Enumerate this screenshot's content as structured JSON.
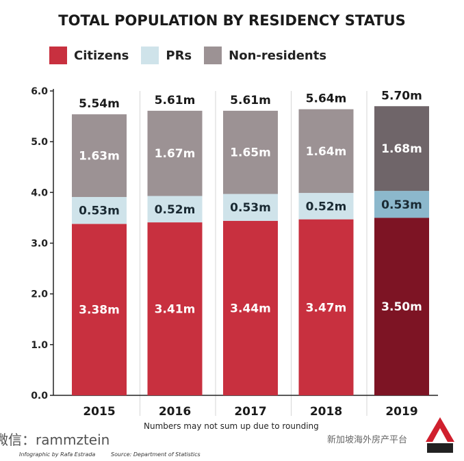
{
  "chart_data": {
    "type": "bar",
    "stacked": true,
    "title": "TOTAL POPULATION BY RESIDENCY STATUS",
    "categories": [
      "2015",
      "2016",
      "2017",
      "2018",
      "2019"
    ],
    "series": [
      {
        "name": "Citizens",
        "values": [
          3.38,
          3.41,
          3.44,
          3.47,
          3.5
        ],
        "labels": [
          "3.38m",
          "3.41m",
          "3.44m",
          "3.47m",
          "3.50m"
        ],
        "color": "#c8303f",
        "highlight": "#7d1424"
      },
      {
        "name": "PRs",
        "values": [
          0.53,
          0.52,
          0.53,
          0.52,
          0.53
        ],
        "labels": [
          "0.53m",
          "0.52m",
          "0.53m",
          "0.52m",
          "0.53m"
        ],
        "color": "#cfe3ea",
        "highlight": "#8cb8cc"
      },
      {
        "name": "Non-residents",
        "values": [
          1.63,
          1.67,
          1.65,
          1.64,
          1.68
        ],
        "labels": [
          "1.63m",
          "1.67m",
          "1.65m",
          "1.64m",
          "1.68m"
        ],
        "color": "#9c9294",
        "highlight": "#6f6569"
      }
    ],
    "totals": [
      5.54,
      5.61,
      5.61,
      5.64,
      5.7
    ],
    "total_labels": [
      "5.54m",
      "5.61m",
      "5.61m",
      "5.64m",
      "5.70m"
    ],
    "highlight_category": "2019",
    "yticks": [
      "0.0",
      "1.0",
      "2.0",
      "3.0",
      "4.0",
      "5.0",
      "6.0"
    ],
    "ylim": [
      0,
      6
    ],
    "legend": "top-left",
    "xlabel": "",
    "ylabel": ""
  },
  "note": "Numbers may not sum up due to rounding",
  "credit": "Infographic by Rafa Estrada",
  "source": "Source: Department of Statistics",
  "watermark_left": "微信：rammztein",
  "watermark_right": "新加坡海外房产平台",
  "logo": "cna"
}
